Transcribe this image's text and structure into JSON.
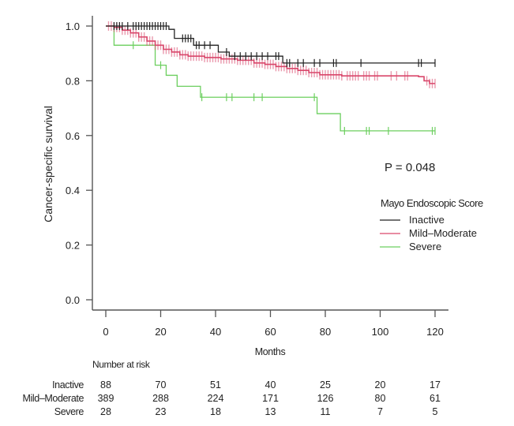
{
  "chart_data": {
    "type": "line",
    "subtype": "kaplan-meier",
    "title": "",
    "xlabel": "Months",
    "ylabel": "Cancer-specific survival",
    "xlim": [
      0,
      120
    ],
    "ylim": [
      0,
      1.0
    ],
    "xticks": [
      0,
      20,
      40,
      60,
      80,
      100,
      120
    ],
    "xtick_labels": [
      "0",
      "20",
      "40",
      "60",
      "80",
      "100",
      "120"
    ],
    "yticks": [
      0.0,
      0.2,
      0.4,
      0.6,
      0.8,
      1.0
    ],
    "ytick_labels": [
      "0.0",
      "0.2",
      "0.4",
      "0.6",
      "0.8",
      "1.0"
    ],
    "grid": false,
    "annotation": "P = 0.048",
    "legend": {
      "title": "Mayo Endoscopic Score",
      "placement": "right-middle",
      "entries": [
        "Inactive",
        "Mild–Moderate",
        "Severe"
      ]
    },
    "series": [
      {
        "name": "Inactive",
        "color": "#222222",
        "steps": [
          [
            0,
            1.0
          ],
          [
            23,
            0.988
          ],
          [
            25,
            0.955
          ],
          [
            32,
            0.93
          ],
          [
            41,
            0.905
          ],
          [
            45,
            0.89
          ],
          [
            64.5,
            0.865
          ],
          [
            120,
            0.865
          ]
        ],
        "censor_times": [
          3,
          4,
          5,
          6,
          8,
          10,
          11,
          12,
          13,
          14,
          15,
          16,
          17,
          18,
          19,
          20,
          21,
          22,
          28,
          29,
          30,
          31,
          33,
          34,
          36,
          38,
          44,
          47,
          49,
          51,
          53,
          55,
          57,
          59,
          62,
          63,
          66,
          67,
          70,
          72,
          76,
          78,
          83,
          84,
          93,
          114,
          115,
          120
        ]
      },
      {
        "name": "Mild–Moderate",
        "color": "#d9476b",
        "steps": [
          [
            0,
            1.0
          ],
          [
            3,
            0.995
          ],
          [
            6,
            0.985
          ],
          [
            9,
            0.975
          ],
          [
            12,
            0.96
          ],
          [
            15,
            0.945
          ],
          [
            18,
            0.93
          ],
          [
            21,
            0.915
          ],
          [
            24,
            0.905
          ],
          [
            27,
            0.895
          ],
          [
            30,
            0.89
          ],
          [
            36,
            0.885
          ],
          [
            42,
            0.88
          ],
          [
            48,
            0.875
          ],
          [
            54,
            0.865
          ],
          [
            58,
            0.86
          ],
          [
            62,
            0.852
          ],
          [
            66,
            0.845
          ],
          [
            70,
            0.838
          ],
          [
            74,
            0.83
          ],
          [
            78,
            0.822
          ],
          [
            86,
            0.818
          ],
          [
            114,
            0.815
          ],
          [
            116,
            0.8
          ],
          [
            118,
            0.79
          ],
          [
            120,
            0.79
          ]
        ],
        "censor_times": [
          1,
          2,
          3,
          4,
          5,
          6,
          7,
          8,
          9,
          10,
          11,
          12,
          13,
          14,
          15,
          16,
          17,
          18,
          19,
          20,
          21,
          22,
          23,
          24,
          25,
          26,
          27,
          28,
          29,
          30,
          31,
          32,
          33,
          34,
          35,
          36,
          37,
          38,
          39,
          40,
          41,
          42,
          43,
          44,
          45,
          46,
          47,
          48,
          49,
          50,
          51,
          52,
          53,
          54,
          55,
          56,
          57,
          58,
          59,
          60,
          61,
          62,
          63,
          64,
          65,
          66,
          67,
          68,
          69,
          70,
          71,
          72,
          73,
          74,
          75,
          76,
          77,
          78,
          79,
          80,
          81,
          82,
          83,
          84,
          85,
          86,
          88,
          89,
          90,
          91,
          92,
          94,
          95,
          96,
          98,
          99,
          104,
          106,
          109,
          110,
          117,
          118,
          119,
          120
        ]
      },
      {
        "name": "Severe",
        "color": "#6ccf5f",
        "steps": [
          [
            0,
            1.0
          ],
          [
            3,
            0.93
          ],
          [
            18,
            0.857
          ],
          [
            22,
            0.82
          ],
          [
            26,
            0.78
          ],
          [
            34.5,
            0.74
          ],
          [
            77,
            0.68
          ],
          [
            85.5,
            0.617
          ],
          [
            120,
            0.617
          ]
        ],
        "censor_times": [
          10,
          20,
          35,
          44,
          46,
          54,
          57,
          76,
          87,
          95,
          96,
          103,
          119,
          120
        ]
      }
    ],
    "risk_table": {
      "title": "Number at risk",
      "times": [
        0,
        20,
        40,
        60,
        80,
        100,
        120
      ],
      "rows": [
        {
          "label": "Inactive",
          "values": [
            "88",
            "70",
            "51",
            "40",
            "25",
            "20",
            "17"
          ]
        },
        {
          "label": "Mild–Moderate",
          "values": [
            "389",
            "288",
            "224",
            "171",
            "126",
            "80",
            "61"
          ]
        },
        {
          "label": "Severe",
          "values": [
            "28",
            "23",
            "18",
            "13",
            "11",
            "7",
            "5"
          ]
        }
      ]
    }
  }
}
